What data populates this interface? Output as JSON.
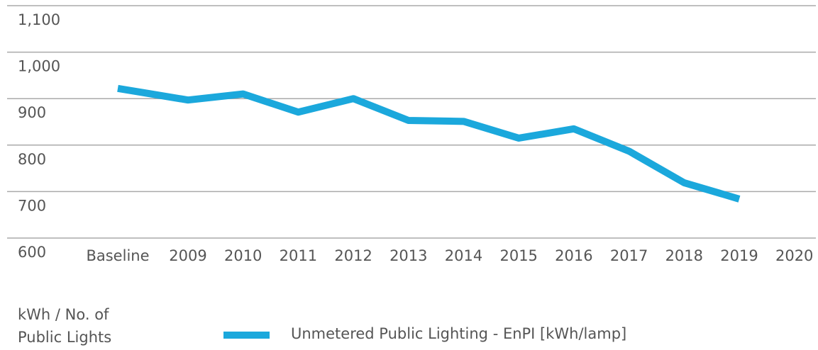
{
  "chart_data": {
    "type": "line",
    "y_label": "kWh / No. of Public Lights",
    "categories": [
      "Baseline",
      "2009",
      "2010",
      "2011",
      "2012",
      "2013",
      "2014",
      "2015",
      "2016",
      "2017",
      "2018",
      "2019",
      "2020"
    ],
    "series": [
      {
        "name": "Unmetered Public Lighting - EnPI [kWh/lamp]",
        "color": "#1ba8dc",
        "values": [
          922,
          897,
          910,
          871,
          900,
          853,
          851,
          815,
          835,
          787,
          719,
          684,
          null
        ]
      }
    ],
    "ylim": [
      600,
      1100
    ],
    "yticks": [
      600,
      700,
      800,
      900,
      {
        "value": 1000,
        "label": "1,000"
      },
      {
        "value": 1100,
        "label": "1,100"
      }
    ],
    "grid": true
  }
}
